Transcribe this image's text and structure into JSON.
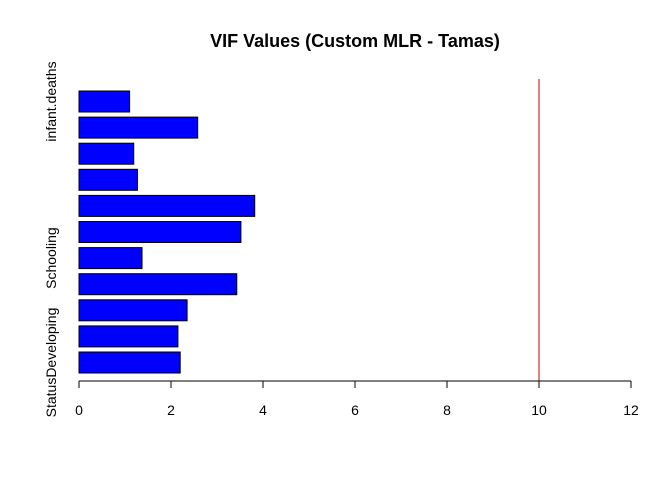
{
  "chart_data": {
    "type": "bar",
    "orientation": "horizontal",
    "title": "VIF Values (Custom MLR - Tamas)",
    "xlabel": "",
    "ylabel": "",
    "xlim": [
      0,
      12
    ],
    "xticks": [
      0,
      2,
      4,
      6,
      8,
      10,
      12
    ],
    "categories": [
      "StatusDeveloping",
      "",
      "",
      "",
      "Schooling",
      "",
      "",
      "",
      "",
      "",
      "infant.deaths"
    ],
    "values": [
      2.2,
      2.15,
      2.35,
      3.43,
      1.37,
      3.52,
      3.82,
      1.27,
      1.19,
      2.58,
      1.1
    ],
    "bar_color": "#0000ff",
    "bar_border_color": "#000000",
    "reference_line": {
      "value": 10,
      "color": "#cc0000"
    },
    "grid": false,
    "legend": "none"
  }
}
